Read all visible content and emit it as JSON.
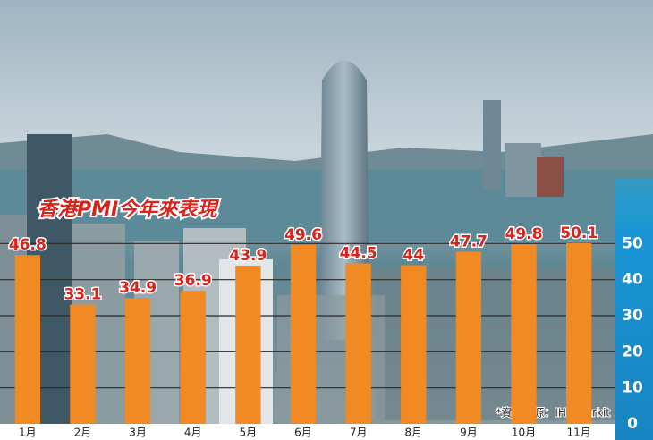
{
  "chart_data": {
    "type": "bar",
    "title": "香港PMI今年來表現",
    "source": "*資料來源：IHS Markit",
    "categories": [
      "1月",
      "2月",
      "3月",
      "4月",
      "5月",
      "6月",
      "7月",
      "8月",
      "9月",
      "10月",
      "11月"
    ],
    "values": [
      46.8,
      33.1,
      34.9,
      36.9,
      43.9,
      49.6,
      44.5,
      44,
      47.7,
      49.8,
      50.1
    ],
    "color": "#f18a22",
    "ylim": [
      0,
      60
    ],
    "yticks": [
      0,
      10,
      20,
      30,
      40,
      50
    ],
    "grid": true
  }
}
